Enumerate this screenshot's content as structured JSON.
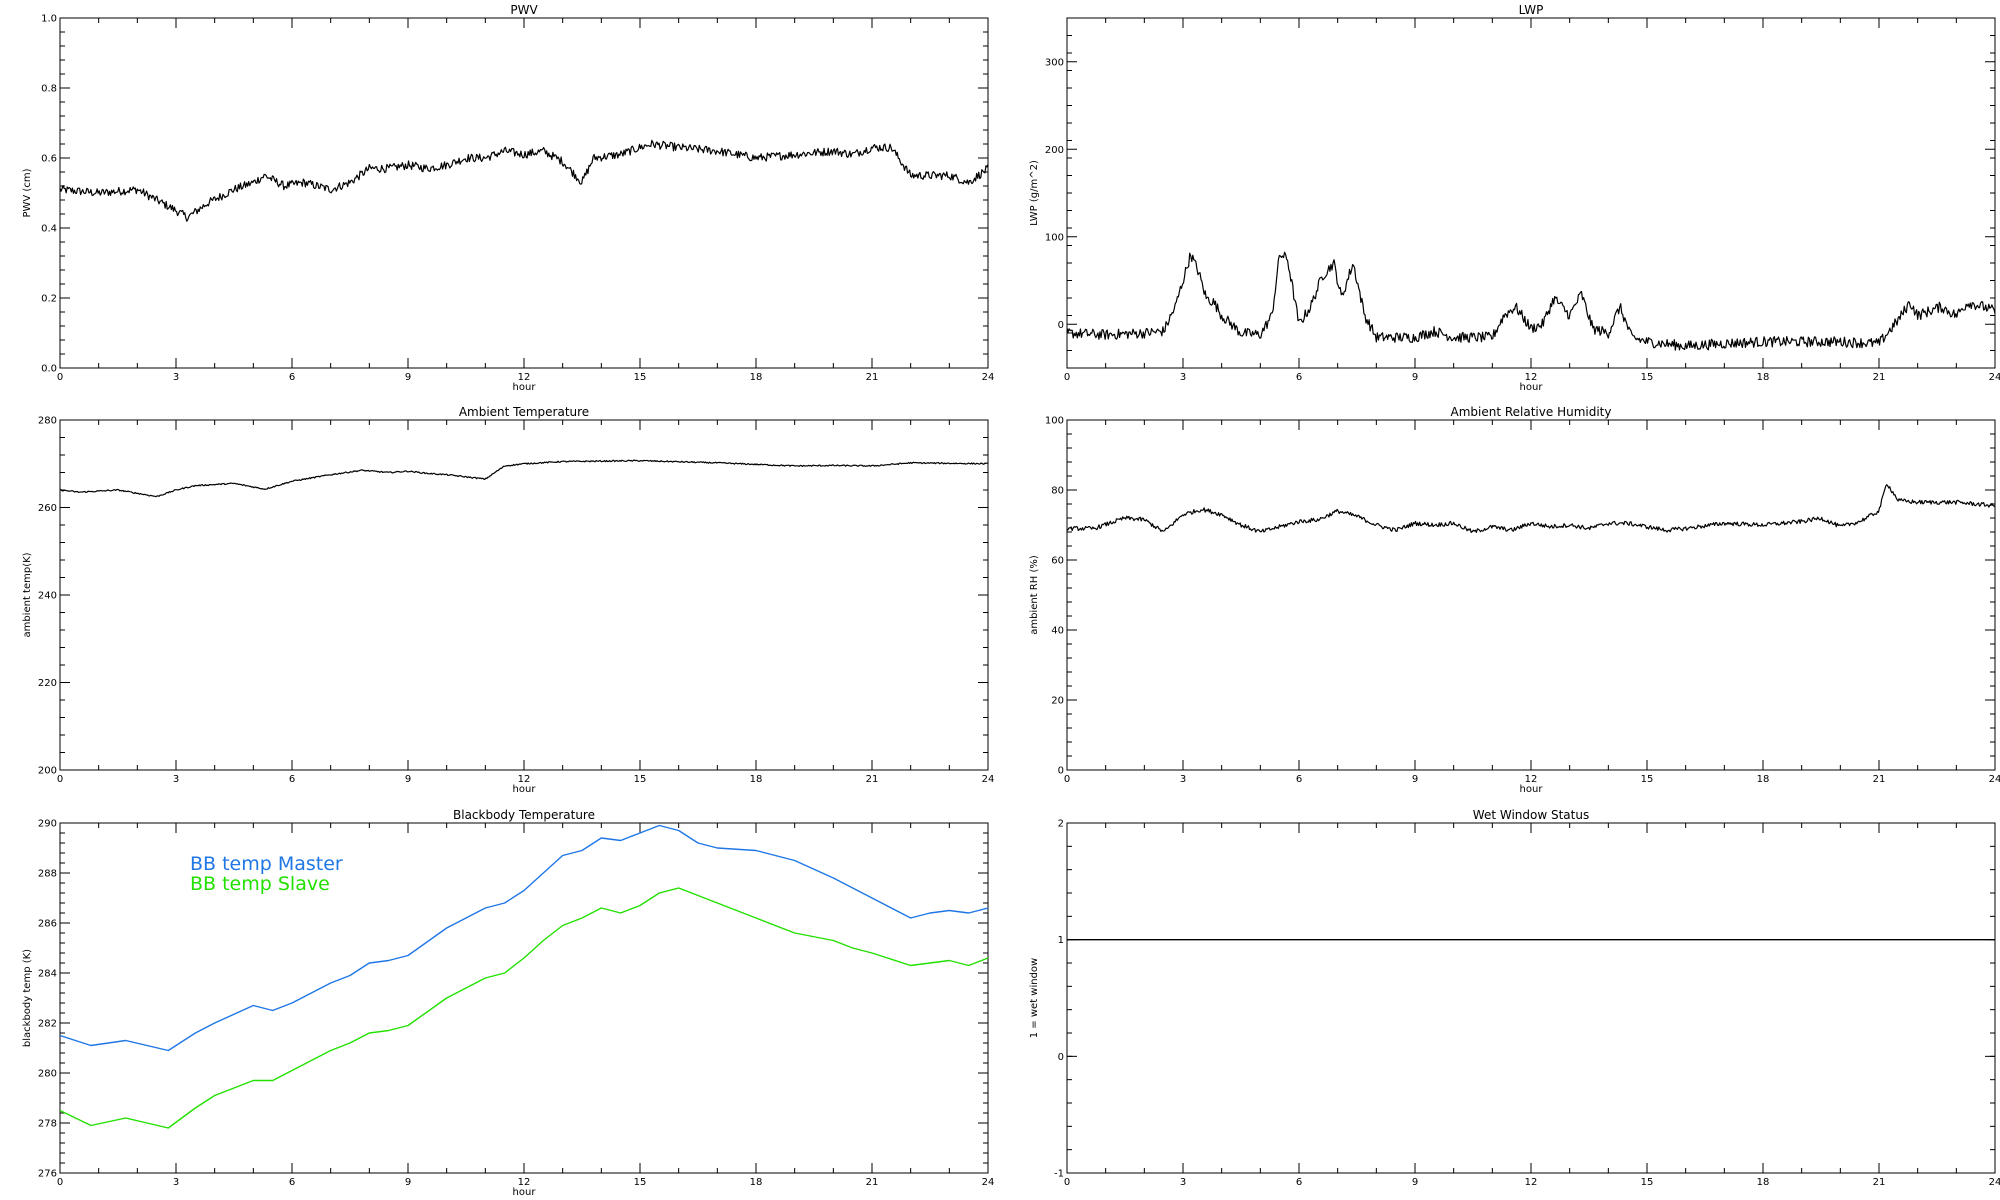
{
  "figure": {
    "panels_description": "six-panel daily instrument summary"
  },
  "chart_data": [
    {
      "id": "pwv",
      "type": "line",
      "title": "PWV",
      "xlabel": "hour",
      "ylabel": "PWV (cm)",
      "xlim": [
        0,
        24
      ],
      "ylim": [
        0.0,
        1.0
      ],
      "xticks": [
        "0",
        "3",
        "6",
        "9",
        "12",
        "15",
        "18",
        "21",
        "24"
      ],
      "yticks": [
        "0.0",
        "0.2",
        "0.4",
        "0.6",
        "0.8",
        "1.0"
      ],
      "noise": 0.012,
      "series": [
        {
          "color": "#000000",
          "x": [
            0,
            1,
            2,
            2.5,
            3,
            3.3,
            3.8,
            4.5,
            5,
            5.3,
            5.8,
            6.3,
            7,
            7.5,
            8,
            8.5,
            9,
            9.5,
            10,
            10.5,
            11,
            11.5,
            12,
            12.5,
            13,
            13.5,
            13.8,
            14.5,
            15,
            15.3,
            16,
            17,
            18,
            19,
            20,
            20.5,
            21,
            21.5,
            22,
            22.5,
            23,
            23.5,
            24
          ],
          "y": [
            0.51,
            0.5,
            0.51,
            0.48,
            0.45,
            0.43,
            0.47,
            0.51,
            0.53,
            0.55,
            0.52,
            0.53,
            0.51,
            0.53,
            0.57,
            0.57,
            0.58,
            0.57,
            0.58,
            0.6,
            0.6,
            0.62,
            0.61,
            0.62,
            0.59,
            0.53,
            0.6,
            0.61,
            0.63,
            0.64,
            0.63,
            0.62,
            0.6,
            0.61,
            0.62,
            0.61,
            0.63,
            0.63,
            0.55,
            0.55,
            0.55,
            0.53,
            0.57
          ]
        }
      ]
    },
    {
      "id": "lwp",
      "type": "line",
      "title": "LWP",
      "xlabel": "hour",
      "ylabel": "LWP (g/m^2)",
      "xlim": [
        0,
        24
      ],
      "ylim": [
        -50,
        350
      ],
      "xticks": [
        "0",
        "3",
        "6",
        "9",
        "12",
        "15",
        "18",
        "21",
        "24"
      ],
      "yticks": [
        "0",
        "100",
        "200",
        "300"
      ],
      "noise": 6,
      "series": [
        {
          "color": "#000000",
          "x": [
            0,
            1,
            2,
            2.5,
            2.8,
            3,
            3.2,
            3.4,
            3.6,
            3.8,
            4,
            4.5,
            5,
            5.3,
            5.5,
            5.7,
            6,
            6.3,
            6.6,
            6.9,
            7.1,
            7.4,
            7.7,
            8,
            9,
            9.5,
            10,
            11,
            11.3,
            11.6,
            12,
            12.3,
            12.6,
            13,
            13.3,
            13.6,
            14,
            14.3,
            14.6,
            15,
            16,
            17,
            18,
            19,
            20,
            21,
            21.5,
            21.8,
            22,
            22.3,
            22.6,
            23,
            23.3,
            23.7,
            24
          ],
          "y": [
            -10,
            -12,
            -10,
            -8,
            20,
            50,
            80,
            60,
            30,
            25,
            10,
            -10,
            -12,
            10,
            80,
            75,
            0,
            20,
            55,
            70,
            30,
            70,
            10,
            -15,
            -15,
            -8,
            -15,
            -15,
            10,
            20,
            -5,
            0,
            30,
            10,
            35,
            -5,
            -10,
            20,
            -15,
            -20,
            -25,
            -22,
            -20,
            -20,
            -20,
            -22,
            5,
            25,
            10,
            15,
            20,
            10,
            25,
            20,
            15
          ]
        }
      ]
    },
    {
      "id": "ambient-temp",
      "type": "line",
      "title": "Ambient Temperature",
      "xlabel": "hour",
      "ylabel": "ambient temp(K)",
      "xlim": [
        0,
        24
      ],
      "ylim": [
        200,
        280
      ],
      "xticks": [
        "0",
        "3",
        "6",
        "9",
        "12",
        "15",
        "18",
        "21",
        "24"
      ],
      "yticks": [
        "200",
        "220",
        "240",
        "260",
        "280"
      ],
      "noise": 0.15,
      "series": [
        {
          "color": "#000000",
          "x": [
            0,
            0.5,
            1.5,
            2.5,
            3,
            3.5,
            4.5,
            5.3,
            6,
            7,
            7.8,
            8.5,
            9,
            9.5,
            10,
            11,
            11.5,
            12,
            13,
            15,
            17,
            19,
            20,
            21,
            22,
            24
          ],
          "y": [
            264,
            263.5,
            264,
            262.5,
            264,
            265,
            265.5,
            264.2,
            266,
            267.5,
            268.5,
            268,
            268.3,
            267.8,
            267.5,
            266.5,
            269.5,
            270,
            270.5,
            270.7,
            270.2,
            269.5,
            269.6,
            269.5,
            270.2,
            270
          ]
        }
      ]
    },
    {
      "id": "ambient-rh",
      "type": "line",
      "title": "Ambient Relative Humidity",
      "xlabel": "hour",
      "ylabel": "ambient RH (%)",
      "xlim": [
        0,
        24
      ],
      "ylim": [
        0,
        100
      ],
      "xticks": [
        "0",
        "3",
        "6",
        "9",
        "12",
        "15",
        "18",
        "21",
        "24"
      ],
      "yticks": [
        "0",
        "20",
        "40",
        "60",
        "80",
        "100"
      ],
      "noise": 0.6,
      "series": [
        {
          "color": "#000000",
          "x": [
            0,
            0.7,
            1.5,
            2,
            2.5,
            3,
            3.5,
            4,
            4.5,
            5,
            5.5,
            6,
            6.5,
            7,
            7.5,
            8,
            8.5,
            9,
            9.5,
            10,
            10.5,
            11,
            11.5,
            12,
            12.5,
            13,
            13.5,
            14,
            14.5,
            15,
            15.5,
            16,
            17,
            18,
            19,
            19.5,
            20,
            20.5,
            21,
            21.2,
            21.5,
            22,
            23,
            24
          ],
          "y": [
            69,
            69,
            72,
            71.5,
            68,
            73,
            74.5,
            73,
            70,
            68,
            69.5,
            71,
            71.5,
            74,
            72.5,
            70,
            68.5,
            70.5,
            70,
            70.5,
            68,
            69.5,
            68.5,
            70.5,
            69.5,
            70,
            69,
            70.5,
            70.5,
            69.5,
            68.5,
            69,
            70.5,
            70,
            71,
            72,
            69.5,
            71,
            74,
            82,
            77,
            76.5,
            76.5,
            75.5
          ]
        }
      ]
    },
    {
      "id": "bb-temp",
      "type": "line",
      "title": "Blackbody Temperature",
      "xlabel": "hour",
      "ylabel": "blackbody temp (K)",
      "xlim": [
        0,
        24
      ],
      "ylim": [
        276,
        290
      ],
      "xticks": [
        "0",
        "3",
        "6",
        "9",
        "12",
        "15",
        "18",
        "21",
        "24"
      ],
      "yticks": [
        "276",
        "278",
        "280",
        "282",
        "284",
        "286",
        "288",
        "290"
      ],
      "noise": 0,
      "series": [
        {
          "name": "BB temp Master",
          "color": "#1f77e6",
          "x": [
            0,
            0.8,
            1.7,
            2.8,
            3.5,
            4,
            5,
            5.5,
            6,
            7,
            7.5,
            8,
            8.5,
            9,
            10,
            11,
            11.5,
            12,
            12.5,
            13,
            13.5,
            14,
            14.5,
            15,
            15.5,
            16,
            16.5,
            17,
            18,
            19,
            20,
            20.5,
            21,
            22,
            22.5,
            23,
            23.5,
            24
          ],
          "y": [
            281.5,
            281.1,
            281.3,
            280.9,
            281.6,
            282.0,
            282.7,
            282.5,
            282.8,
            283.6,
            283.9,
            284.4,
            284.5,
            284.7,
            285.8,
            286.6,
            286.8,
            287.3,
            288.0,
            288.7,
            288.9,
            289.4,
            289.3,
            289.6,
            289.9,
            289.7,
            289.2,
            289.0,
            288.9,
            288.5,
            287.8,
            287.4,
            287.0,
            286.2,
            286.4,
            286.5,
            286.4,
            286.6
          ]
        },
        {
          "name": "BB temp Slave",
          "color": "#22e000",
          "x": [
            0,
            0.8,
            1.7,
            2.8,
            3.5,
            4,
            5,
            5.5,
            6,
            7,
            7.5,
            8,
            8.5,
            9,
            10,
            11,
            11.5,
            12,
            12.5,
            13,
            13.5,
            14,
            14.5,
            15,
            15.5,
            16,
            16.5,
            17,
            18,
            19,
            20,
            20.5,
            21,
            22,
            22.5,
            23,
            23.5,
            24
          ],
          "y": [
            278.5,
            277.9,
            278.2,
            277.8,
            278.6,
            279.1,
            279.7,
            279.7,
            280.1,
            280.9,
            281.2,
            281.6,
            281.7,
            281.9,
            283.0,
            283.8,
            284.0,
            284.6,
            285.3,
            285.9,
            286.2,
            286.6,
            286.4,
            286.7,
            287.2,
            287.4,
            287.1,
            286.8,
            286.2,
            285.6,
            285.3,
            285.0,
            284.8,
            284.3,
            284.4,
            284.5,
            284.3,
            284.6
          ]
        }
      ]
    },
    {
      "id": "wet-window",
      "type": "line",
      "title": "Wet Window Status",
      "xlabel": "",
      "ylabel": "1 = wet window",
      "xlim": [
        0,
        24
      ],
      "ylim": [
        -1,
        2
      ],
      "xticks": [
        "0",
        "3",
        "6",
        "9",
        "12",
        "15",
        "18",
        "21",
        "24"
      ],
      "yticks": [
        "-1",
        "0",
        "1",
        "2"
      ],
      "noise": 0,
      "series": [
        {
          "color": "#000000",
          "x": [
            0,
            24
          ],
          "y": [
            1,
            1
          ]
        }
      ]
    }
  ]
}
